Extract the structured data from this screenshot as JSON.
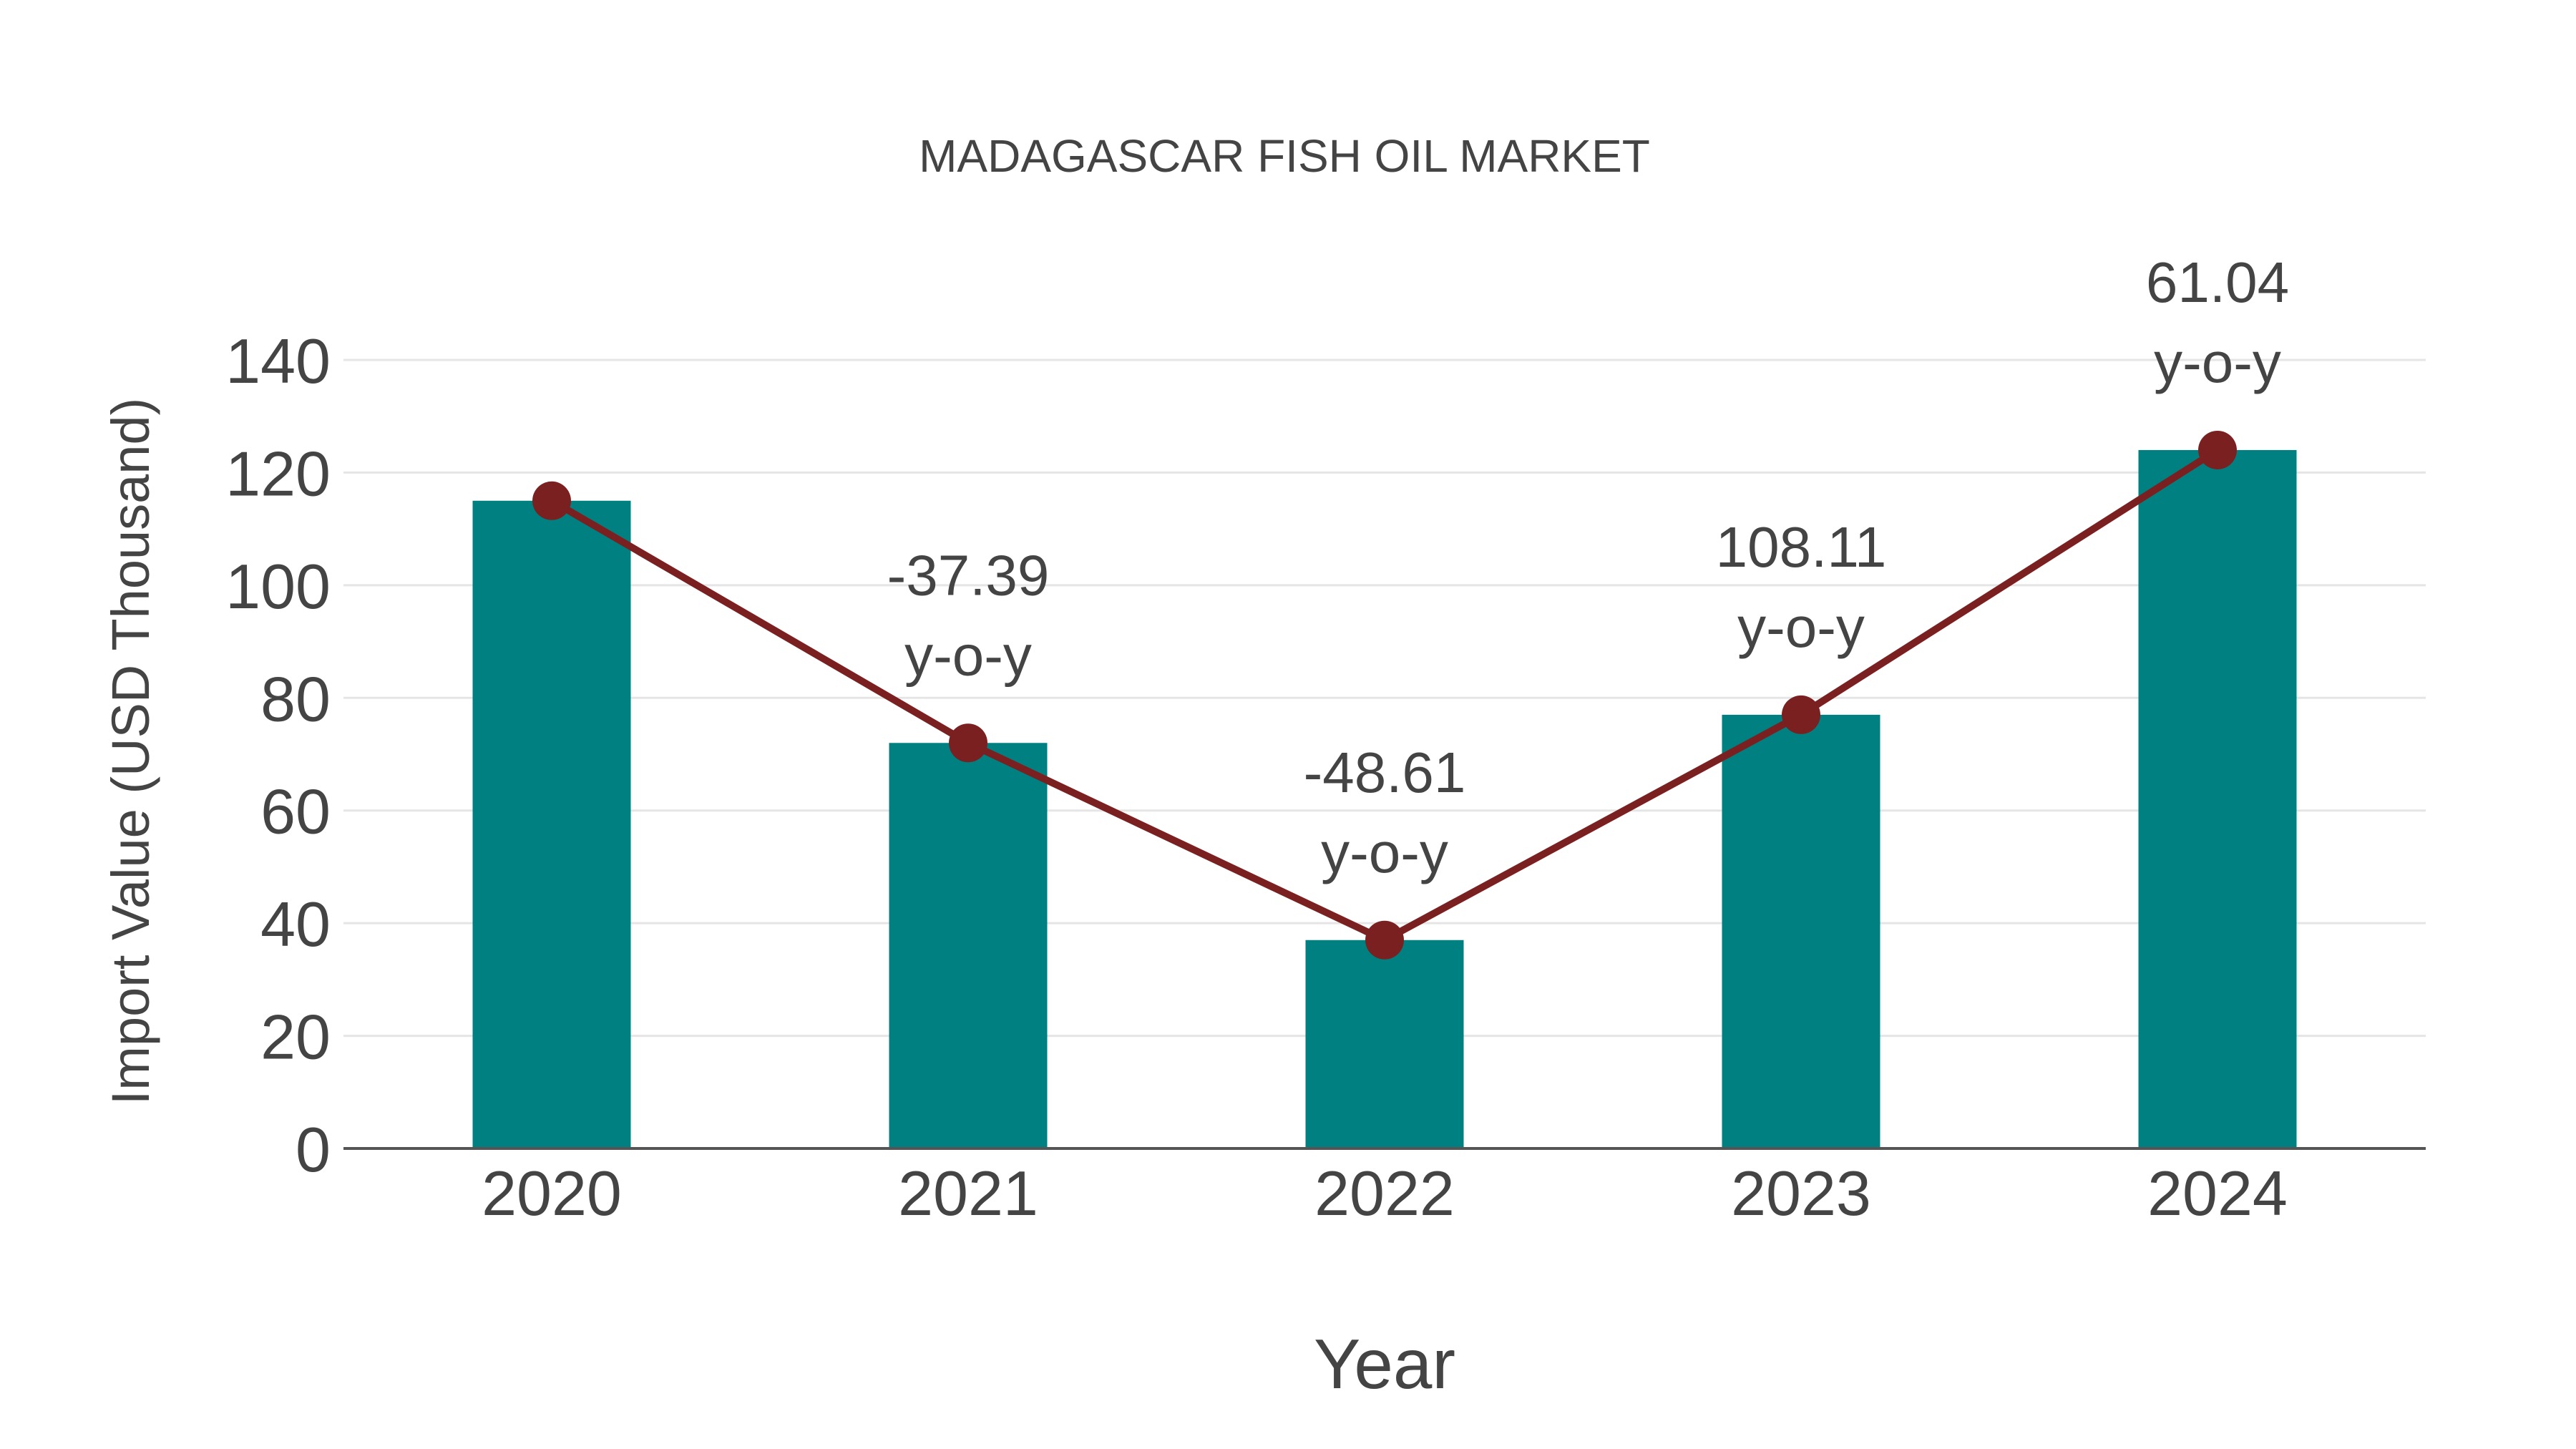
{
  "title": "MADAGASCAR FISH OIL MARKET",
  "colors": {
    "bar": "#008080",
    "line": "#7B2020",
    "text": "#444444",
    "grid": "#E5E5E5",
    "axis": "#555555",
    "background": "#FFFFFF"
  },
  "chart_data": {
    "type": "bar",
    "title": "MADAGASCAR FISH OIL MARKET",
    "xlabel": "Year",
    "ylabel": "Import Value (USD Thousand)",
    "categories": [
      "2020",
      "2021",
      "2022",
      "2023",
      "2024"
    ],
    "ylim": [
      0,
      140
    ],
    "yticks": [
      0,
      20,
      40,
      60,
      80,
      100,
      120,
      140
    ],
    "grid": true,
    "legend": "none",
    "series": [
      {
        "name": "Import Value",
        "type": "bar",
        "color": "#008080",
        "values": [
          115,
          72,
          37,
          77,
          124
        ]
      },
      {
        "name": "Import Value trend",
        "type": "line",
        "color": "#7B2020",
        "values": [
          115,
          72,
          37,
          77,
          124
        ]
      }
    ],
    "annotations": [
      {
        "category": "2021",
        "value": "-37.39",
        "suffix": "y-o-y"
      },
      {
        "category": "2022",
        "value": "-48.61",
        "suffix": "y-o-y"
      },
      {
        "category": "2023",
        "value": "108.11",
        "suffix": "y-o-y"
      },
      {
        "category": "2024",
        "value": "61.04",
        "suffix": "y-o-y"
      }
    ]
  }
}
